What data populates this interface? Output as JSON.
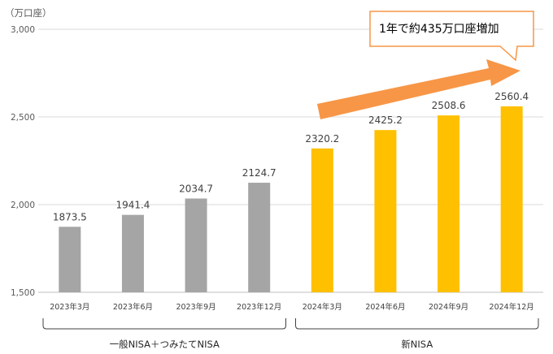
{
  "chart_data": {
    "type": "bar",
    "unit_label": "（万口座）",
    "categories": [
      "2023年3月",
      "2023年6月",
      "2023年9月",
      "2023年12月",
      "2024年3月",
      "2024年6月",
      "2024年9月",
      "2024年12月"
    ],
    "values": [
      1873.5,
      1941.4,
      2034.7,
      2124.7,
      2320.2,
      2425.2,
      2508.6,
      2560.4
    ],
    "value_labels": [
      "1873.5",
      "1941.4",
      "2034.7",
      "2124.7",
      "2320.2",
      "2425.2",
      "2508.6",
      "2560.4"
    ],
    "bar_colors": [
      "#a5a5a5",
      "#a5a5a5",
      "#a5a5a5",
      "#a5a5a5",
      "#ffc000",
      "#ffc000",
      "#ffc000",
      "#ffc000"
    ],
    "ylim": [
      1500,
      3000
    ],
    "yticks": [
      1500,
      2000,
      2500,
      3000
    ],
    "ytick_labels": [
      "1,500",
      "2,000",
      "2,500",
      "3,000"
    ],
    "grid": true,
    "groups": [
      {
        "label": "一般NISA＋つみたてNISA",
        "from": 0,
        "to": 3
      },
      {
        "label": "新NISA",
        "from": 4,
        "to": 7
      }
    ],
    "annotation": {
      "text": "1年で約435万口座増加",
      "arrow_color": "#f79646",
      "box_border_color": "#f79646"
    }
  }
}
